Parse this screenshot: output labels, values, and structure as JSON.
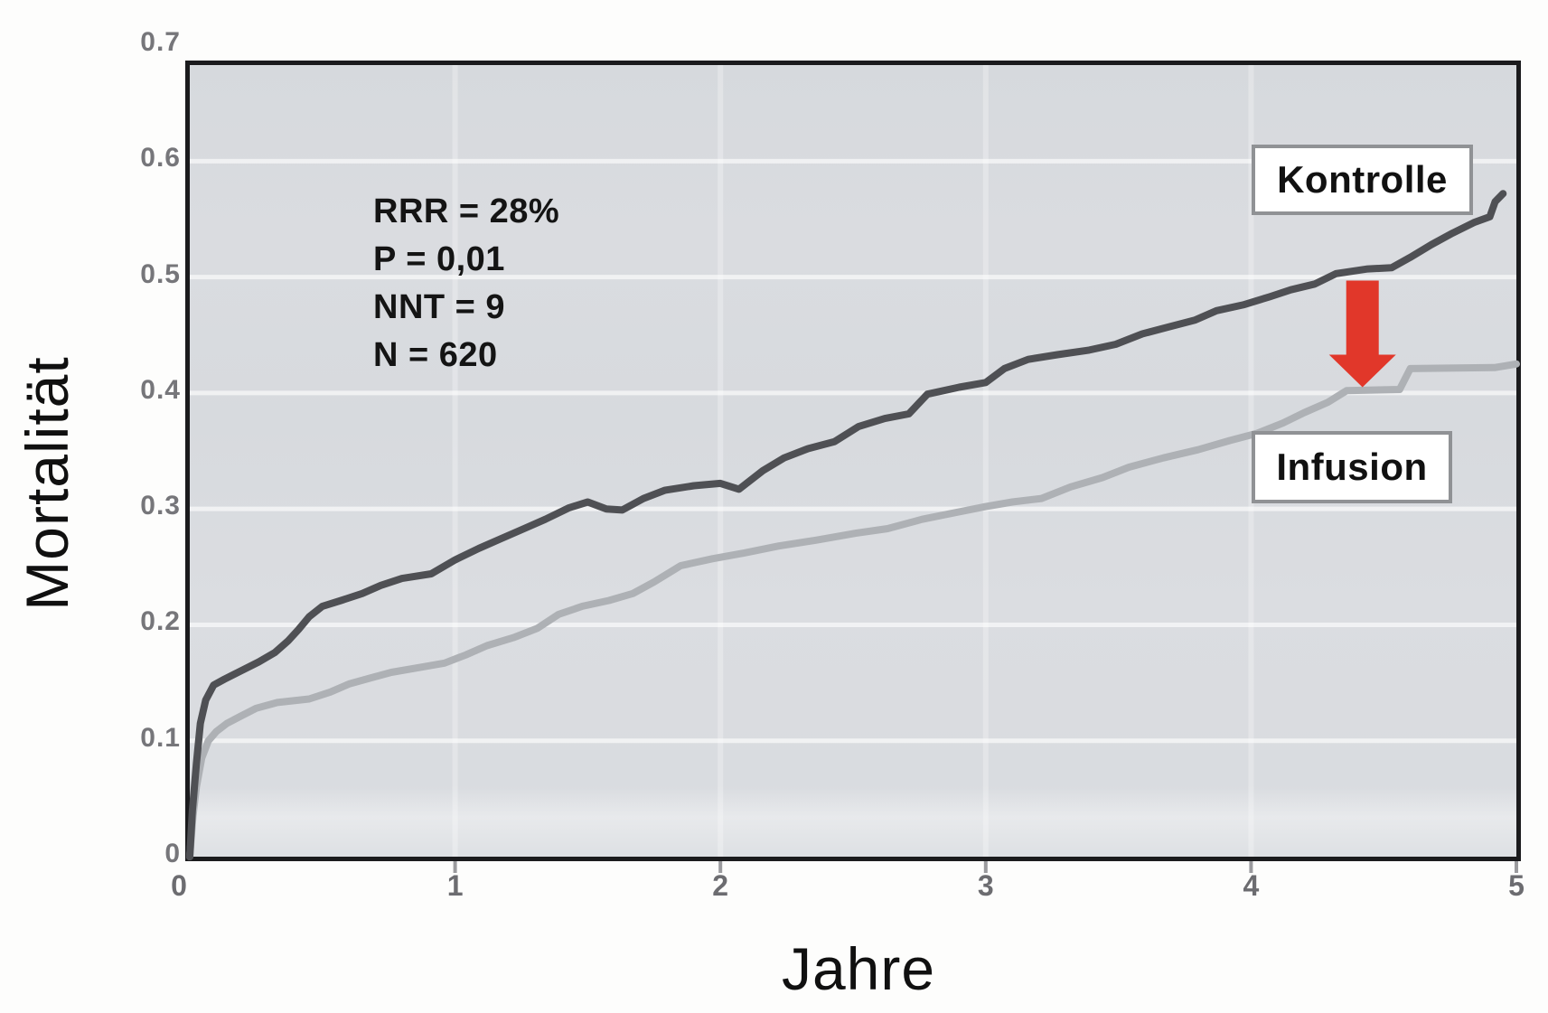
{
  "labels": {
    "control": "Kontrolle",
    "treatment": "Infusion"
  },
  "annotations": {
    "stats_lines": [
      "RRR = 28%",
      "P = 0,01",
      "NNT = 9",
      "N = 620"
    ]
  },
  "colors": {
    "control_curve": "#4f5054",
    "treatment_curve": "#aeb1b5",
    "arrow_red": "#e1372a",
    "plot_background": "#d8dbdf",
    "axis_border": "#1b1b1d",
    "label_box_border": "#909295",
    "tick_text": "#6c6c70",
    "grid_band": "#ffffff"
  },
  "chart_data": {
    "type": "line",
    "title": "",
    "xlabel": "Jahre",
    "ylabel": "Mortalität",
    "xlim": [
      0,
      5
    ],
    "ylim": [
      0,
      0.7
    ],
    "grid": "light horizontal bands at each 0.1, faint vertical bands at integer years",
    "legend_position": "on-chart labeled boxes (Kontrolle upper right, Infusion right)",
    "x_ticks": {
      "values": [
        0,
        1,
        2,
        3,
        4,
        5
      ],
      "labels": [
        "0",
        "1",
        "2",
        "3",
        "4",
        "5"
      ]
    },
    "y_ticks": {
      "values": [
        0,
        0.1,
        0.2,
        0.3,
        0.4,
        0.5,
        0.6,
        0.7
      ],
      "labels": [
        "0",
        "0.1",
        "0.2",
        "0.3",
        "0.4",
        "0.5",
        "0.6",
        "0.7"
      ]
    },
    "series": [
      {
        "name": "Infusion",
        "color": "#aeb1b5",
        "points": [
          [
            0,
            0
          ],
          [
            0.012,
            0.035
          ],
          [
            0.025,
            0.06
          ],
          [
            0.045,
            0.085
          ],
          [
            0.07,
            0.1
          ],
          [
            0.1,
            0.108
          ],
          [
            0.14,
            0.115
          ],
          [
            0.19,
            0.121
          ],
          [
            0.25,
            0.128
          ],
          [
            0.33,
            0.133
          ],
          [
            0.45,
            0.136
          ],
          [
            0.53,
            0.142
          ],
          [
            0.6,
            0.149
          ],
          [
            0.68,
            0.154
          ],
          [
            0.76,
            0.159
          ],
          [
            0.86,
            0.163
          ],
          [
            0.96,
            0.167
          ],
          [
            1.04,
            0.174
          ],
          [
            1.12,
            0.182
          ],
          [
            1.22,
            0.189
          ],
          [
            1.31,
            0.197
          ],
          [
            1.39,
            0.209
          ],
          [
            1.48,
            0.216
          ],
          [
            1.58,
            0.221
          ],
          [
            1.67,
            0.227
          ],
          [
            1.75,
            0.237
          ],
          [
            1.85,
            0.251
          ],
          [
            1.97,
            0.257
          ],
          [
            2.09,
            0.262
          ],
          [
            2.22,
            0.268
          ],
          [
            2.36,
            0.273
          ],
          [
            2.51,
            0.279
          ],
          [
            2.63,
            0.283
          ],
          [
            2.76,
            0.291
          ],
          [
            2.89,
            0.297
          ],
          [
            3.0,
            0.302
          ],
          [
            3.1,
            0.306
          ],
          [
            3.21,
            0.309
          ],
          [
            3.32,
            0.319
          ],
          [
            3.44,
            0.327
          ],
          [
            3.54,
            0.336
          ],
          [
            3.67,
            0.344
          ],
          [
            3.8,
            0.351
          ],
          [
            3.92,
            0.359
          ],
          [
            4.02,
            0.365
          ],
          [
            4.12,
            0.374
          ],
          [
            4.2,
            0.383
          ],
          [
            4.29,
            0.392
          ],
          [
            4.36,
            0.402
          ],
          [
            4.56,
            0.403
          ],
          [
            4.6,
            0.421
          ],
          [
            4.92,
            0.422
          ],
          [
            5.0,
            0.425
          ]
        ]
      },
      {
        "name": "Kontrolle",
        "color": "#4f5054",
        "points": [
          [
            0,
            0
          ],
          [
            0.01,
            0.04
          ],
          [
            0.025,
            0.08
          ],
          [
            0.04,
            0.115
          ],
          [
            0.06,
            0.135
          ],
          [
            0.09,
            0.148
          ],
          [
            0.13,
            0.153
          ],
          [
            0.19,
            0.16
          ],
          [
            0.26,
            0.168
          ],
          [
            0.32,
            0.176
          ],
          [
            0.37,
            0.186
          ],
          [
            0.41,
            0.196
          ],
          [
            0.45,
            0.207
          ],
          [
            0.5,
            0.216
          ],
          [
            0.57,
            0.221
          ],
          [
            0.65,
            0.227
          ],
          [
            0.72,
            0.234
          ],
          [
            0.8,
            0.24
          ],
          [
            0.91,
            0.244
          ],
          [
            1.0,
            0.256
          ],
          [
            1.09,
            0.266
          ],
          [
            1.17,
            0.274
          ],
          [
            1.26,
            0.283
          ],
          [
            1.34,
            0.291
          ],
          [
            1.43,
            0.301
          ],
          [
            1.5,
            0.306
          ],
          [
            1.57,
            0.3
          ],
          [
            1.63,
            0.299
          ],
          [
            1.71,
            0.309
          ],
          [
            1.79,
            0.316
          ],
          [
            1.9,
            0.32
          ],
          [
            2.0,
            0.322
          ],
          [
            2.07,
            0.317
          ],
          [
            2.16,
            0.333
          ],
          [
            2.24,
            0.344
          ],
          [
            2.33,
            0.352
          ],
          [
            2.43,
            0.358
          ],
          [
            2.52,
            0.371
          ],
          [
            2.62,
            0.378
          ],
          [
            2.71,
            0.382
          ],
          [
            2.78,
            0.399
          ],
          [
            2.9,
            0.405
          ],
          [
            3.0,
            0.409
          ],
          [
            3.07,
            0.421
          ],
          [
            3.16,
            0.429
          ],
          [
            3.27,
            0.433
          ],
          [
            3.39,
            0.437
          ],
          [
            3.49,
            0.442
          ],
          [
            3.59,
            0.451
          ],
          [
            3.69,
            0.457
          ],
          [
            3.79,
            0.463
          ],
          [
            3.87,
            0.471
          ],
          [
            3.97,
            0.476
          ],
          [
            4.07,
            0.483
          ],
          [
            4.15,
            0.489
          ],
          [
            4.24,
            0.494
          ],
          [
            4.32,
            0.503
          ],
          [
            4.44,
            0.507
          ],
          [
            4.53,
            0.508
          ],
          [
            4.6,
            0.517
          ],
          [
            4.68,
            0.528
          ],
          [
            4.76,
            0.538
          ],
          [
            4.84,
            0.547
          ],
          [
            4.9,
            0.552
          ],
          [
            4.92,
            0.565
          ],
          [
            4.95,
            0.572
          ]
        ]
      }
    ],
    "arrow": {
      "x": 4.42,
      "y_from": 0.497,
      "y_to": 0.405,
      "color": "#e1372a",
      "meaning": "absolute risk reduction from Kontrolle down to Infusion curve"
    }
  }
}
